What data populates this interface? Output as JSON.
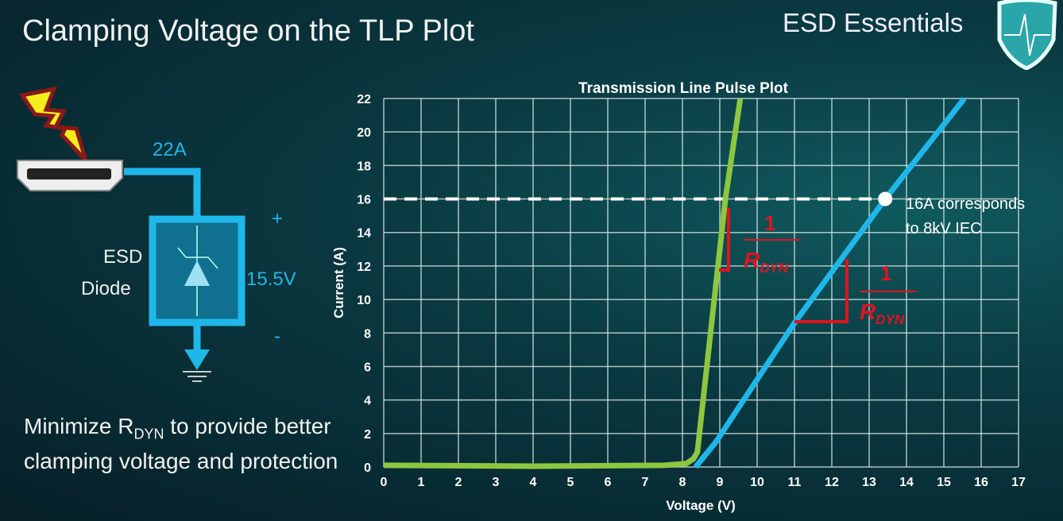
{
  "slide": {
    "title": "Clamping Voltage on the TLP Plot",
    "brand": "ESD Essentials",
    "bottom_text": {
      "part1": "Minimize R",
      "sub": "DYN",
      "part2": " to provide better clamping voltage and protection"
    }
  },
  "circuit": {
    "current": "22A",
    "device_line1": "ESD",
    "device_line2": "Diode",
    "voltage": "15.5V",
    "plus": "+",
    "minus": "-"
  },
  "colors": {
    "accent": "#1fb6ea",
    "green": "#8dc63f",
    "red": "#e0141e",
    "background": "#0a3a42"
  },
  "chart_data": {
    "type": "line",
    "title": "Transmission Line Pulse Plot",
    "xlabel": "Voltage (V)",
    "ylabel": "Current (A)",
    "xlim": [
      0,
      17
    ],
    "ylim": [
      0,
      22
    ],
    "xticks": [
      0,
      1,
      2,
      3,
      4,
      5,
      6,
      7,
      8,
      9,
      10,
      11,
      12,
      13,
      14,
      15,
      16,
      17
    ],
    "yticks": [
      0,
      2,
      4,
      6,
      8,
      10,
      12,
      14,
      16,
      18,
      20,
      22
    ],
    "grid": true,
    "series": [
      {
        "color": "#8dc63f",
        "x": [
          0,
          4,
          7.5,
          8.1,
          8.3,
          8.4,
          9.15,
          9.55
        ],
        "y": [
          0.1,
          0.05,
          0.1,
          0.2,
          0.5,
          0.9,
          16,
          22
        ]
      },
      {
        "color": "#1fb6ea",
        "x": [
          8.35,
          8.9,
          11,
          13.43,
          15.55
        ],
        "y": [
          0,
          1.5,
          8.6,
          16,
          22
        ]
      }
    ],
    "reference_line": {
      "y": 16,
      "style": "dashed"
    },
    "marker": {
      "x": 13.43,
      "y": 16
    },
    "annotations": [
      {
        "text_line1": "16A corresponds",
        "text_line2": "to 8kV IEC"
      },
      {
        "numerator": "1",
        "denominator": "R",
        "sub": "DYN"
      },
      {
        "numerator": "1",
        "denominator": "R",
        "sub": "DYN"
      }
    ]
  }
}
